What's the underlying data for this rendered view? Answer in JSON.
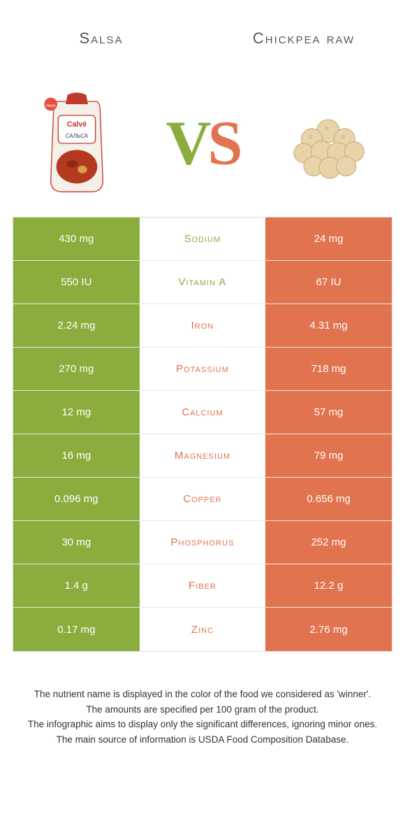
{
  "header": {
    "left_title": "Salsa",
    "right_title": "Chickpea raw"
  },
  "vs": {
    "v": "V",
    "s": "S"
  },
  "colors": {
    "green": "#8aad3e",
    "orange": "#e2734f",
    "row_border": "#e8e8e8",
    "text": "#333333"
  },
  "table": {
    "rows": [
      {
        "nutrient": "Sodium",
        "left": "430 mg",
        "right": "24 mg",
        "winner": "left"
      },
      {
        "nutrient": "Vitamin A",
        "left": "550 IU",
        "right": "67 IU",
        "winner": "left"
      },
      {
        "nutrient": "Iron",
        "left": "2.24 mg",
        "right": "4.31 mg",
        "winner": "right"
      },
      {
        "nutrient": "Potassium",
        "left": "270 mg",
        "right": "718 mg",
        "winner": "right"
      },
      {
        "nutrient": "Calcium",
        "left": "12 mg",
        "right": "57 mg",
        "winner": "right"
      },
      {
        "nutrient": "Magnesium",
        "left": "16 mg",
        "right": "79 mg",
        "winner": "right"
      },
      {
        "nutrient": "Copper",
        "left": "0.096 mg",
        "right": "0.656 mg",
        "winner": "right"
      },
      {
        "nutrient": "Phosphorus",
        "left": "30 mg",
        "right": "252 mg",
        "winner": "right"
      },
      {
        "nutrient": "Fiber",
        "left": "1.4 g",
        "right": "12.2 g",
        "winner": "right"
      },
      {
        "nutrient": "Zinc",
        "left": "0.17 mg",
        "right": "2.76 mg",
        "winner": "right"
      }
    ]
  },
  "footer": {
    "line1": "The nutrient name is displayed in the color of the food we considered as 'winner'.",
    "line2": "The amounts are specified per 100 gram of the product.",
    "line3": "The infographic aims to display only the significant differences, ignoring minor ones.",
    "line4": "The main source of information is USDA Food Composition Database."
  }
}
